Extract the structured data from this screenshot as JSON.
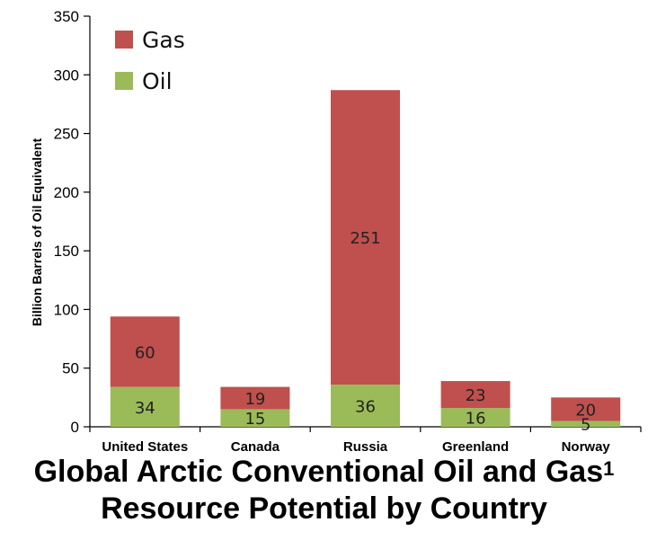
{
  "chart_data": {
    "type": "bar",
    "stacked": true,
    "title_line1": "Global Arctic Conventional Oil and Gas",
    "title_superscript": "1",
    "title_line2": "Resource Potential by Country",
    "xlabel": "",
    "ylabel": "Billion Barrels of Oil Equivalent",
    "ylim": [
      0,
      350
    ],
    "yticks": [
      0,
      50,
      100,
      150,
      200,
      250,
      300,
      350
    ],
    "grid": false,
    "legend_position": "top-left",
    "categories": [
      "United States",
      "Canada",
      "Russia",
      "Greenland",
      "Norway"
    ],
    "series": [
      {
        "name": "Oil",
        "values": [
          34,
          15,
          36,
          16,
          5
        ],
        "color": "#9bbb59"
      },
      {
        "name": "Gas",
        "values": [
          60,
          19,
          251,
          23,
          20
        ],
        "color": "#c0504d"
      }
    ],
    "legend_order": [
      "Gas",
      "Oil"
    ]
  }
}
